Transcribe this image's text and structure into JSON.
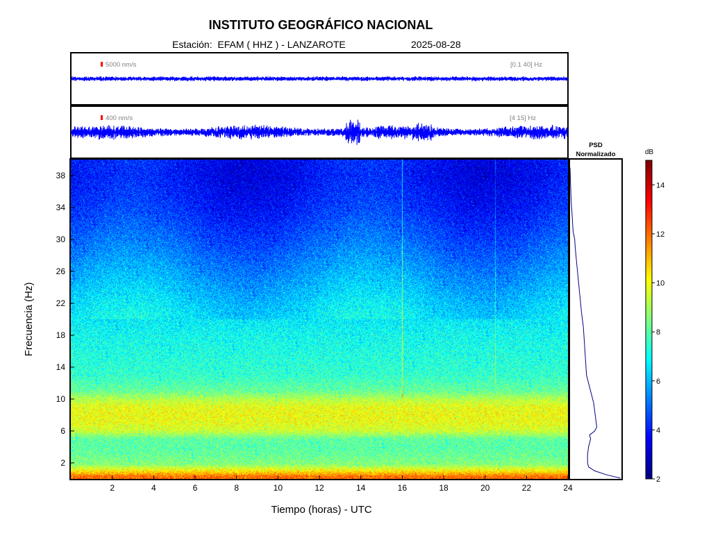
{
  "header": {
    "title": "INSTITUTO GEOGRÁFICO NACIONAL",
    "station_line": "Estación:  EFAM ( HHZ ) - LANZAROTE",
    "date": "2025-08-28"
  },
  "traces": [
    {
      "scale_label": "5000 nm/s",
      "band_label": "[0.1 40] Hz",
      "relative_amplitude": 0.1
    },
    {
      "scale_label": "400 nm/s",
      "band_label": "[4 15] Hz",
      "relative_amplitude": 0.3
    }
  ],
  "colors": {
    "trace": "#0000ff",
    "scale_marker": "#ff0000",
    "psd_line": "#000080"
  },
  "chart_data": [
    {
      "type": "heatmap",
      "name": "spectrogram",
      "xlabel": "Tiempo (horas) - UTC",
      "ylabel": "Frecuencia  (Hz)",
      "xlim": [
        0,
        24
      ],
      "ylim": [
        0,
        40
      ],
      "x_ticks": [
        2,
        4,
        6,
        8,
        10,
        12,
        14,
        16,
        18,
        20,
        22,
        24
      ],
      "y_ticks": [
        2,
        6,
        10,
        14,
        18,
        22,
        26,
        30,
        34,
        38
      ],
      "colormap": "jet",
      "color_range": [
        2,
        15
      ],
      "frequency_profile_db": [
        {
          "freq": 0.3,
          "db": 12.0
        },
        {
          "freq": 1.0,
          "db": 10.3
        },
        {
          "freq": 1.8,
          "db": 8.6
        },
        {
          "freq": 3.0,
          "db": 8.2
        },
        {
          "freq": 4.0,
          "db": 8.0
        },
        {
          "freq": 5.0,
          "db": 8.1
        },
        {
          "freq": 6.0,
          "db": 9.5
        },
        {
          "freq": 7.0,
          "db": 9.9
        },
        {
          "freq": 8.0,
          "db": 10.0
        },
        {
          "freq": 9.0,
          "db": 9.9
        },
        {
          "freq": 10.0,
          "db": 9.2
        },
        {
          "freq": 11.0,
          "db": 8.2
        },
        {
          "freq": 13.0,
          "db": 7.5
        },
        {
          "freq": 15.0,
          "db": 7.3
        },
        {
          "freq": 18.0,
          "db": 7.0
        },
        {
          "freq": 22.0,
          "db": 6.4
        },
        {
          "freq": 26.0,
          "db": 5.6
        },
        {
          "freq": 30.0,
          "db": 4.8
        },
        {
          "freq": 34.0,
          "db": 4.1
        },
        {
          "freq": 38.0,
          "db": 3.7
        },
        {
          "freq": 40.0,
          "db": 3.8
        }
      ]
    },
    {
      "type": "line",
      "name": "psd",
      "title": "PSD\nNormalizado",
      "xlim": [
        0,
        1
      ],
      "ylim": [
        0,
        40
      ],
      "points": [
        {
          "freq": 0.1,
          "value": 0.98
        },
        {
          "freq": 0.5,
          "value": 0.72
        },
        {
          "freq": 1.0,
          "value": 0.48
        },
        {
          "freq": 1.5,
          "value": 0.36
        },
        {
          "freq": 2.0,
          "value": 0.34
        },
        {
          "freq": 3.0,
          "value": 0.34
        },
        {
          "freq": 4.0,
          "value": 0.36
        },
        {
          "freq": 5.0,
          "value": 0.4
        },
        {
          "freq": 5.5,
          "value": 0.38
        },
        {
          "freq": 6.0,
          "value": 0.48
        },
        {
          "freq": 6.5,
          "value": 0.52
        },
        {
          "freq": 7.5,
          "value": 0.5
        },
        {
          "freq": 8.5,
          "value": 0.48
        },
        {
          "freq": 9.5,
          "value": 0.46
        },
        {
          "freq": 10.5,
          "value": 0.42
        },
        {
          "freq": 11.5,
          "value": 0.38
        },
        {
          "freq": 13.0,
          "value": 0.32
        },
        {
          "freq": 15.0,
          "value": 0.3
        },
        {
          "freq": 17.0,
          "value": 0.28
        },
        {
          "freq": 19.0,
          "value": 0.26
        },
        {
          "freq": 21.0,
          "value": 0.22
        },
        {
          "freq": 23.0,
          "value": 0.19
        },
        {
          "freq": 25.0,
          "value": 0.16
        },
        {
          "freq": 27.0,
          "value": 0.13
        },
        {
          "freq": 29.0,
          "value": 0.1
        },
        {
          "freq": 30.0,
          "value": 0.09
        },
        {
          "freq": 31.0,
          "value": 0.06
        },
        {
          "freq": 33.0,
          "value": 0.04
        },
        {
          "freq": 35.0,
          "value": 0.02
        },
        {
          "freq": 37.0,
          "value": 0.01
        },
        {
          "freq": 39.0,
          "value": 0.0
        }
      ]
    },
    {
      "type": "heatmap",
      "name": "colorbar",
      "label": "dB",
      "range": [
        2,
        15
      ],
      "ticks": [
        2,
        4,
        6,
        8,
        10,
        12,
        14
      ]
    }
  ]
}
